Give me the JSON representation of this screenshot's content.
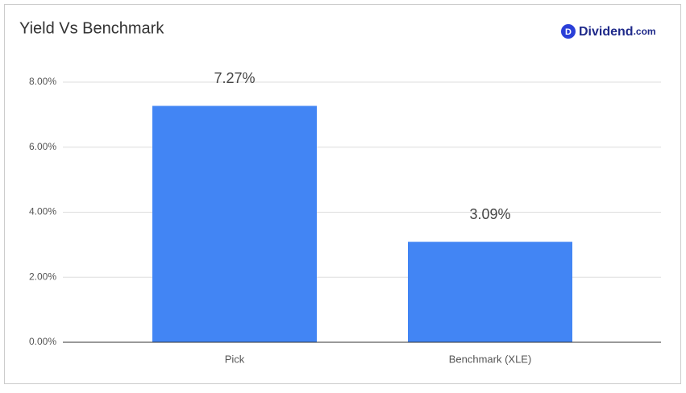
{
  "brand": {
    "icon": "D",
    "name": "Dividend",
    "suffix": ".com"
  },
  "chart_data": {
    "type": "bar",
    "title": "Yield Vs Benchmark",
    "categories": [
      "Pick",
      "Benchmark (XLE)"
    ],
    "values": [
      7.27,
      3.09
    ],
    "value_labels": [
      "7.27%",
      "3.09%"
    ],
    "color": "#4285f4",
    "ylim": [
      0,
      8
    ],
    "yticks": [
      {
        "value": 0,
        "label": "0.00%"
      },
      {
        "value": 2,
        "label": "2.00%"
      },
      {
        "value": 4,
        "label": "4.00%"
      },
      {
        "value": 6,
        "label": "6.00%"
      },
      {
        "value": 8,
        "label": "8.00%"
      }
    ],
    "grid": true
  }
}
